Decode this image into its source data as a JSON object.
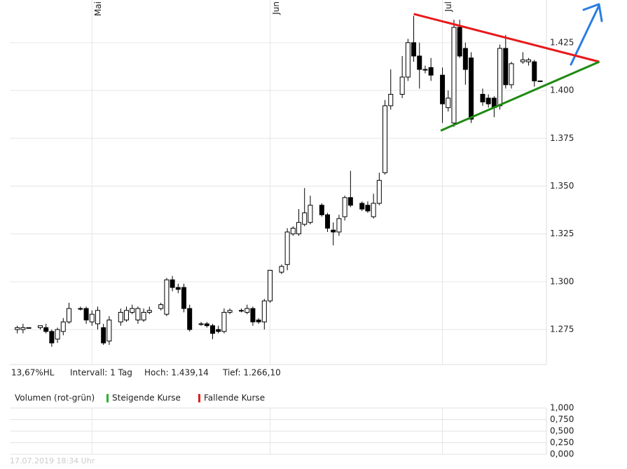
{
  "chart_data": [
    {
      "type": "candlestick",
      "x": [
        0,
        1,
        2,
        4,
        5,
        6,
        7,
        8,
        9,
        11,
        12,
        13,
        14,
        15,
        16,
        18,
        19,
        20,
        21,
        22,
        23,
        25,
        26,
        27,
        28,
        29,
        30,
        32,
        33,
        34,
        35,
        36,
        37,
        39,
        40,
        41,
        42,
        43,
        44,
        46,
        47,
        48,
        49,
        50,
        51,
        53,
        54,
        55,
        56,
        57,
        58,
        60,
        61,
        62,
        63,
        64,
        65,
        67,
        68,
        69,
        70,
        71,
        72,
        74,
        75,
        76,
        77,
        78,
        79,
        81,
        82,
        83,
        84,
        85,
        86,
        88,
        89,
        90,
        91
      ],
      "open": [
        1.275,
        1.275,
        1.276,
        1.276,
        1.276,
        1.274,
        1.27,
        1.274,
        1.279,
        1.286,
        1.286,
        1.279,
        1.278,
        1.276,
        1.269,
        1.279,
        1.28,
        1.284,
        1.28,
        1.28,
        1.284,
        1.286,
        1.283,
        1.301,
        1.297,
        1.297,
        1.286,
        1.278,
        1.278,
        1.277,
        1.275,
        1.274,
        1.284,
        1.285,
        1.284,
        1.286,
        1.28,
        1.279,
        1.29,
        1.305,
        1.309,
        1.325,
        1.325,
        1.33,
        1.331,
        1.34,
        1.335,
        1.327,
        1.326,
        1.334,
        1.344,
        1.341,
        1.34,
        1.334,
        1.341,
        1.357,
        1.392,
        1.398,
        1.407,
        1.425,
        1.418,
        1.411,
        1.412,
        1.408,
        1.391,
        1.383,
        1.433,
        1.422,
        1.417,
        1.398,
        1.396,
        1.396,
        1.392,
        1.422,
        1.403,
        1.415,
        1.415,
        1.415,
        1.405
      ],
      "high": [
        1.277,
        1.278,
        1.276,
        1.277,
        1.278,
        1.275,
        1.276,
        1.281,
        1.289,
        1.287,
        1.287,
        1.285,
        1.287,
        1.278,
        1.282,
        1.286,
        1.287,
        1.288,
        1.287,
        1.286,
        1.287,
        1.289,
        1.302,
        1.303,
        1.299,
        1.299,
        1.288,
        1.279,
        1.279,
        1.278,
        1.277,
        1.286,
        1.286,
        1.286,
        1.288,
        1.287,
        1.281,
        1.291,
        1.306,
        1.309,
        1.328,
        1.329,
        1.338,
        1.349,
        1.345,
        1.341,
        1.336,
        1.331,
        1.335,
        1.345,
        1.358,
        1.342,
        1.342,
        1.346,
        1.357,
        1.395,
        1.411,
        1.418,
        1.427,
        1.439,
        1.425,
        1.413,
        1.417,
        1.412,
        1.4,
        1.437,
        1.437,
        1.425,
        1.42,
        1.401,
        1.398,
        1.397,
        1.424,
        1.429,
        1.415,
        1.42,
        1.417,
        1.416,
        1.405
      ],
      "low": [
        1.273,
        1.273,
        1.276,
        1.275,
        1.273,
        1.266,
        1.268,
        1.272,
        1.278,
        1.285,
        1.278,
        1.277,
        1.275,
        1.267,
        1.267,
        1.277,
        1.279,
        1.283,
        1.278,
        1.279,
        1.283,
        1.285,
        1.282,
        1.295,
        1.294,
        1.284,
        1.274,
        1.277,
        1.276,
        1.27,
        1.273,
        1.273,
        1.283,
        1.284,
        1.283,
        1.277,
        1.278,
        1.275,
        1.289,
        1.304,
        1.306,
        1.324,
        1.324,
        1.329,
        1.33,
        1.334,
        1.326,
        1.319,
        1.324,
        1.332,
        1.339,
        1.337,
        1.336,
        1.333,
        1.34,
        1.356,
        1.39,
        1.396,
        1.405,
        1.415,
        1.401,
        1.409,
        1.405,
        1.383,
        1.389,
        1.381,
        1.417,
        1.403,
        1.383,
        1.392,
        1.391,
        1.386,
        1.39,
        1.401,
        1.401,
        1.414,
        1.413,
        1.402,
        1.405
      ],
      "close": [
        1.276,
        1.276,
        1.276,
        1.277,
        1.274,
        1.268,
        1.275,
        1.279,
        1.286,
        1.286,
        1.28,
        1.283,
        1.285,
        1.268,
        1.28,
        1.284,
        1.285,
        1.286,
        1.286,
        1.284,
        1.285,
        1.288,
        1.301,
        1.297,
        1.296,
        1.286,
        1.275,
        1.278,
        1.277,
        1.273,
        1.274,
        1.284,
        1.285,
        1.285,
        1.286,
        1.279,
        1.279,
        1.29,
        1.306,
        1.308,
        1.326,
        1.328,
        1.331,
        1.336,
        1.34,
        1.335,
        1.328,
        1.326,
        1.333,
        1.344,
        1.34,
        1.338,
        1.337,
        1.341,
        1.353,
        1.392,
        1.398,
        1.407,
        1.425,
        1.418,
        1.411,
        1.411,
        1.408,
        1.393,
        1.396,
        1.433,
        1.418,
        1.411,
        1.385,
        1.394,
        1.393,
        1.391,
        1.422,
        1.403,
        1.414,
        1.416,
        1.416,
        1.405,
        1.405
      ],
      "up_color": "#ffffff",
      "down_color": "#000000",
      "xlim": [
        -1.3,
        92.1
      ],
      "xticks": [
        {
          "value": 13,
          "label": "Mai"
        },
        {
          "value": 44,
          "label": "Jun"
        },
        {
          "value": 74,
          "label": "Jul"
        }
      ],
      "ylim": [
        1.2567,
        1.4473
      ],
      "yticks": [
        1.275,
        {
          "value": 1.3,
          "label": "1.300"
        },
        1.325,
        {
          "value": 1.35,
          "label": "1.350"
        },
        1.375,
        {
          "value": 1.4,
          "label": "1.400"
        },
        1.425
      ],
      "grid": true,
      "trendlines": [
        {
          "color": "#e8191b",
          "x": [
            69,
            101.3
          ],
          "y": [
            1.44,
            1.415
          ]
        },
        {
          "color": "#1f8a12",
          "x": [
            73.7,
            101.3
          ],
          "y": [
            1.379,
            1.415
          ]
        }
      ],
      "stats": [
        "13,67%HL",
        "Intervall: 1 Tag",
        "Hoch: 1.439,14",
        "Tief: 1.266,10"
      ]
    },
    {
      "type": "volume",
      "title": "Volumen (rot-grün)",
      "legend": [
        {
          "name": "Steigende Kurse",
          "color": "#2db02d"
        },
        {
          "name": "Fallende Kurse",
          "color": "#e8191b"
        }
      ],
      "ylim": [
        0,
        1
      ],
      "yticks": [
        {
          "value": 1,
          "label": "1,000"
        },
        {
          "value": 0.75,
          "label": "0,750"
        },
        {
          "value": 0.5,
          "label": "0,500"
        },
        {
          "value": 0.25,
          "label": "0,250"
        },
        {
          "value": 0,
          "label": "0,000"
        }
      ],
      "timestamp": "17.07.2019 18:34 Uhr"
    }
  ]
}
